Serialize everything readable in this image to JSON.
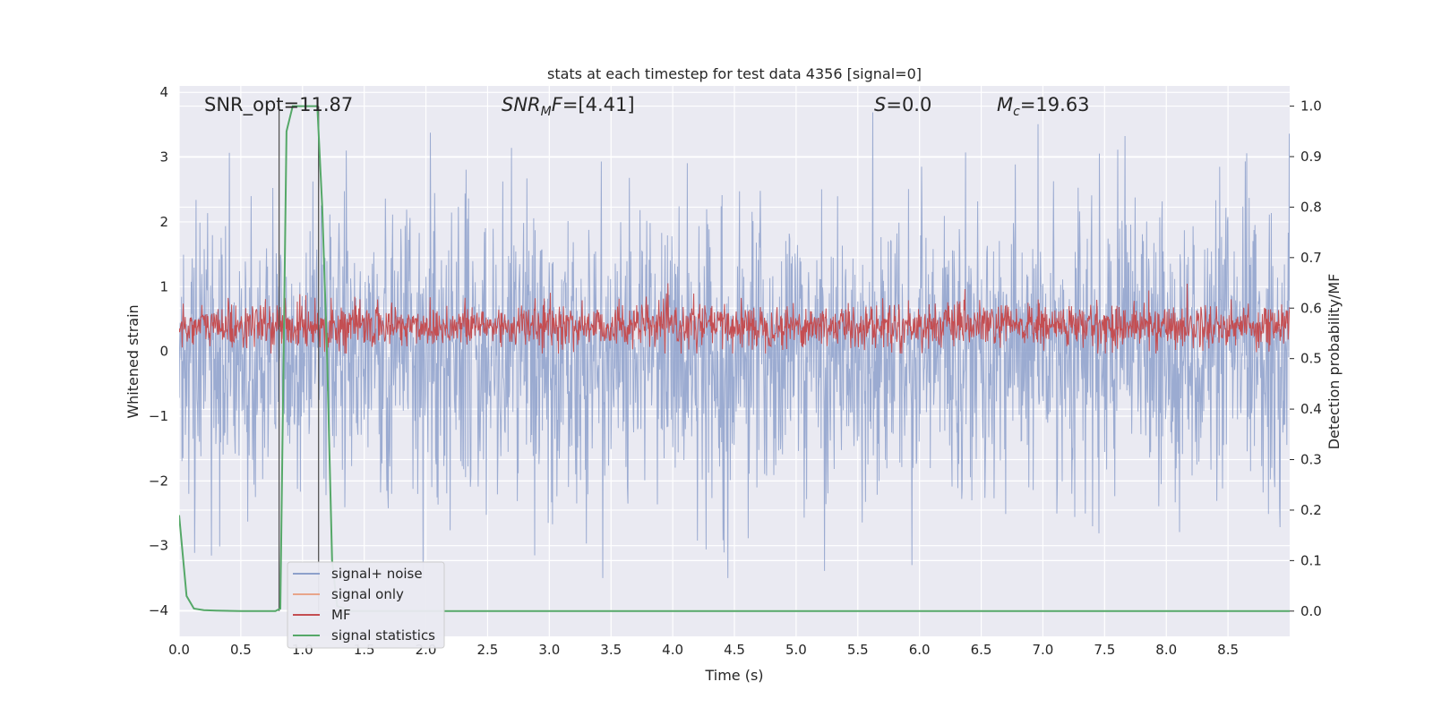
{
  "chart_data": {
    "type": "line",
    "title": "stats at each timestep for test data 4356 [signal=0]",
    "xlabel": "Time (s)",
    "ylabel_left": "Whitened strain",
    "ylabel_right": "Detection probability/MF",
    "xlim": [
      0.0,
      9.0
    ],
    "ylim_left": [
      -4.4,
      4.1
    ],
    "ylim_right": [
      -0.05,
      1.04
    ],
    "xticks": [
      0.0,
      0.5,
      1.0,
      1.5,
      2.0,
      2.5,
      3.0,
      3.5,
      4.0,
      4.5,
      5.0,
      5.5,
      6.0,
      6.5,
      7.0,
      7.5,
      8.0,
      8.5
    ],
    "xtick_labels": [
      "0.0",
      "0.5",
      "1.0",
      "1.5",
      "2.0",
      "2.5",
      "3.0",
      "3.5",
      "4.0",
      "4.5",
      "5.0",
      "5.5",
      "6.0",
      "6.5",
      "7.0",
      "7.5",
      "8.0",
      "8.5"
    ],
    "yticks_left": [
      -4,
      -3,
      -2,
      -1,
      0,
      1,
      2,
      3,
      4
    ],
    "ytick_labels_left": [
      "−4",
      "−3",
      "−2",
      "−1",
      "0",
      "1",
      "2",
      "3",
      "4"
    ],
    "yticks_right": [
      0.0,
      0.1,
      0.2,
      0.3,
      0.4,
      0.5,
      0.6,
      0.7,
      0.8,
      0.9,
      1.0
    ],
    "ytick_labels_right": [
      "0.0",
      "0.1",
      "0.2",
      "0.3",
      "0.4",
      "0.5",
      "0.6",
      "0.7",
      "0.8",
      "0.9",
      "1.0"
    ],
    "grid": true,
    "legend_location": "lower-left",
    "annotations": {
      "snr_opt": "SNR_opt=11.87",
      "snr_mf": "SNR_MF=[4.41]",
      "s": "S=0.0",
      "mc": "M_c=19.63"
    },
    "series": [
      {
        "name": "signal+ noise",
        "color": "#8da0cb",
        "axis": "left",
        "style": "dense noise band roughly between -2.3 and 2.3, peaks to about 3.7 and troughs to about -3.5"
      },
      {
        "name": "signal only",
        "color": "#e8a58a",
        "axis": "left",
        "values": []
      },
      {
        "name": "MF",
        "color": "#c44e52",
        "axis": "right",
        "style": "dense band roughly between 0.52 and 0.62"
      },
      {
        "name": "signal statistics",
        "color": "#55a868",
        "axis": "right",
        "x": [
          0.0,
          0.06,
          0.12,
          0.2,
          0.3,
          0.5,
          0.7,
          0.78,
          0.82,
          0.87,
          0.92,
          0.97,
          1.05,
          1.12,
          1.16,
          1.2,
          1.24,
          1.28,
          1.4,
          2.0,
          3.0,
          4.0,
          5.0,
          6.0,
          7.0,
          8.0,
          9.0
        ],
        "y": [
          0.19,
          0.03,
          0.005,
          0.002,
          0.001,
          0.0,
          0.0,
          0.0,
          0.005,
          0.95,
          1.0,
          1.0,
          1.0,
          1.0,
          0.8,
          0.5,
          0.1,
          0.01,
          0.0,
          0.0,
          0.0,
          0.0,
          0.0,
          0.0,
          0.0,
          0.0,
          0.0
        ]
      }
    ],
    "vertical_lines_x": [
      0.81,
      1.13
    ],
    "vertical_lines_color": "#555555"
  }
}
